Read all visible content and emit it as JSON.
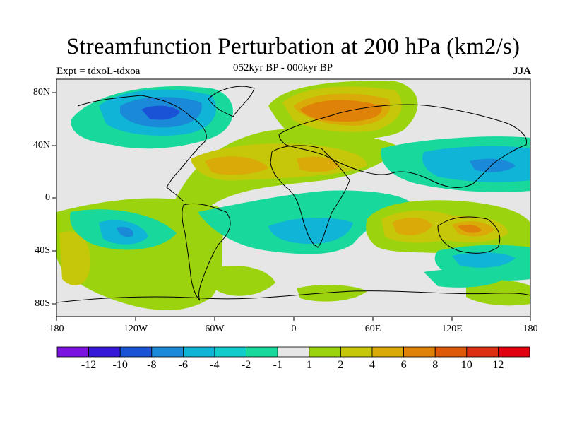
{
  "header": {
    "title": "Streamfunction Perturbation at 200 hPa (km2/s)",
    "subtitle": "052kyr BP - 000kyr BP",
    "left_label": "Expt = tdxoL-tdxoa",
    "right_label": "JJA"
  },
  "map": {
    "projection": "cylindrical equidistant",
    "lat_ticks": [
      "80N",
      "40N",
      "0",
      "40S",
      "80S"
    ],
    "lon_ticks": [
      "180",
      "120W",
      "60W",
      "0",
      "60E",
      "120E",
      "180"
    ],
    "features": [
      "coastlines"
    ]
  },
  "colorbar": {
    "labels": [
      "-12",
      "-10",
      "-8",
      "-6",
      "-4",
      "-2",
      "-1",
      "1",
      "2",
      "4",
      "6",
      "8",
      "10",
      "12"
    ],
    "colors": [
      "#7b12e0",
      "#3518d8",
      "#1a53d6",
      "#1a8ad8",
      "#0fb4d6",
      "#12cccc",
      "#18d89c",
      "#e6e6e6",
      "#9bd40e",
      "#c7c70a",
      "#d9aa08",
      "#df8308",
      "#df5a08",
      "#dc3010",
      "#e00010"
    ]
  },
  "chart_data": {
    "type": "heatmap",
    "title": "Streamfunction Perturbation at 200 hPa (km2/s)",
    "subtitle": "052kyr BP - 000kyr BP",
    "season": "JJA",
    "units": "km2/s",
    "x_range": [
      -180,
      180
    ],
    "y_range": [
      -90,
      90
    ],
    "contour_levels": [
      -12,
      -10,
      -8,
      -6,
      -4,
      -2,
      -1,
      1,
      2,
      4,
      6,
      8,
      10,
      12
    ],
    "features": [
      {
        "region": "North America / Canada",
        "value": -7
      },
      {
        "region": "Scandinavia / Barents Sea",
        "value": 7
      },
      {
        "region": "Central North Atlantic / Sahara",
        "value": 5
      },
      {
        "region": "Northwest Pacific",
        "value": -5
      },
      {
        "region": "Central South Pacific",
        "value": -5
      },
      {
        "region": "South Indian Ocean",
        "value": 6
      },
      {
        "region": "Australia",
        "value": 6
      },
      {
        "region": "South Atlantic / southern Africa",
        "value": -4
      },
      {
        "region": "South Pacific east of New Zealand",
        "value": -4
      },
      {
        "region": "Southeast Pacific near 40S",
        "value": 3
      }
    ]
  }
}
